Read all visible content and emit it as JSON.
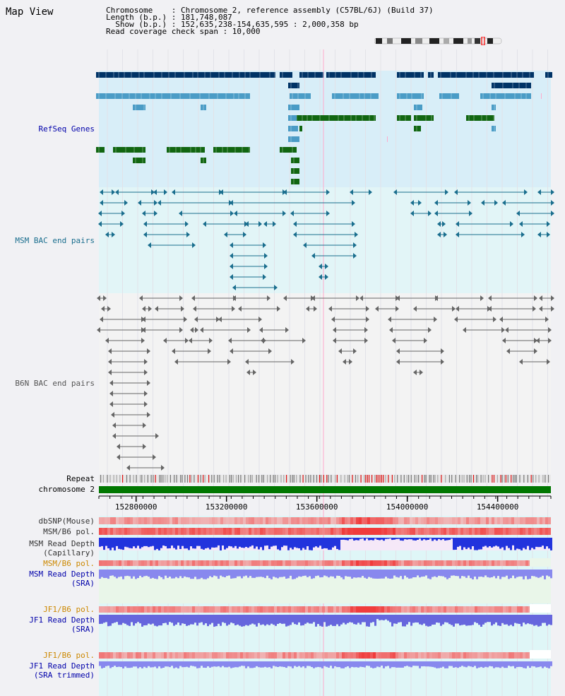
{
  "page": {
    "title": "Map View"
  },
  "header": {
    "line1": "Chromosome    : Chromosome 2, reference assembly (C57BL/6J) (Build 37)",
    "line2": "Length (b.p.) : 181,748,087",
    "line3": "  Show (b.p.) : 152,635,238-154,635,595 : 2,000,358 bp",
    "line4": "Read coverage check span : 10,000"
  },
  "tracks": {
    "refseq": "RefSeq Genes",
    "msm_bac": "MSM BAC end pairs",
    "b6n_bac": "B6N BAC end pairs",
    "repeat": "Repeat",
    "chromosome": "chromosome 2",
    "dbsnp": "dbSNP(Mouse)",
    "msm_b6_pol": "MSM/B6 pol.",
    "msm_depth_cap_1": "MSM Read Depth",
    "msm_depth_cap_2": "(Capillary)",
    "msm_b6_pol_sra": "MSM/B6 pol.",
    "msm_depth_sra_1": "MSM Read Depth",
    "msm_depth_sra_2": "(SRA)",
    "jf1_b6_pol": "JF1/B6 pol.",
    "jf1_depth_sra_1": "JF1 Read Depth",
    "jf1_depth_sra_2": "(SRA)",
    "jf1_b6_pol_trim": "JF1/B6 pol.",
    "jf1_depth_trim_1": "JF1 Read Depth",
    "jf1_depth_trim_2": "(SRA trimmed)"
  },
  "axis": {
    "ticks": [
      "152800000",
      "153200000",
      "153600000",
      "154000000",
      "154400000"
    ],
    "tick_positions_bp": [
      152800000,
      153200000,
      153600000,
      154000000,
      154400000
    ],
    "range_bp": [
      152635238,
      154635595
    ]
  },
  "colors": {
    "refseq_dark": "#003366",
    "refseq_light": "#4a9cc6",
    "refseq_green": "#116611",
    "msm_feature": "#1a6e8e",
    "b6n_feature": "#666666",
    "label_blue": "#0000aa",
    "label_orange": "#cc8800"
  }
}
